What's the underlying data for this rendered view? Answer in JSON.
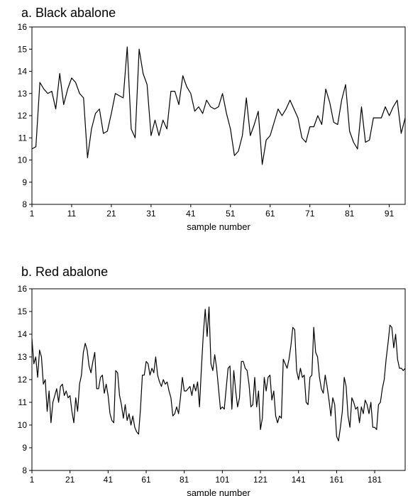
{
  "chart_data": [
    {
      "type": "line",
      "title": "a. Black abalone",
      "xlabel": "sample number",
      "ylabel": "",
      "xlim": [
        1,
        95
      ],
      "ylim": [
        8,
        16
      ],
      "yticks": [
        8,
        9,
        10,
        11,
        12,
        13,
        14,
        15,
        16
      ],
      "xticks": [
        1,
        11,
        21,
        31,
        41,
        51,
        61,
        71,
        81,
        91
      ],
      "grid": false,
      "legend": "none",
      "series": [
        {
          "values": [
            10.5,
            10.6,
            13.5,
            13.2,
            13.0,
            13.1,
            12.3,
            13.9,
            12.5,
            13.2,
            13.7,
            13.5,
            13.0,
            12.8,
            10.1,
            11.4,
            12.1,
            12.3,
            11.2,
            11.3,
            12.1,
            13.0,
            12.9,
            12.8,
            15.1,
            11.4,
            11.0,
            15.0,
            13.9,
            13.4,
            11.1,
            11.8,
            11.1,
            11.8,
            11.4,
            13.1,
            13.1,
            12.5,
            13.8,
            13.3,
            13.0,
            12.2,
            12.4,
            12.1,
            12.7,
            12.4,
            12.3,
            12.4,
            13.0,
            12.1,
            11.4,
            10.2,
            10.4,
            11.1,
            12.8,
            11.1,
            11.6,
            12.2,
            9.8,
            10.9,
            11.1,
            11.7,
            12.3,
            12.0,
            12.3,
            12.7,
            12.3,
            11.9,
            11.0,
            10.8,
            11.5,
            11.5,
            12.0,
            11.6,
            13.2,
            12.6,
            11.7,
            11.6,
            12.7,
            13.4,
            11.3,
            10.8,
            10.5,
            12.4,
            10.8,
            10.9,
            11.9,
            11.9,
            11.9,
            12.4,
            12.0,
            12.4,
            12.7,
            11.2,
            11.9
          ]
        }
      ]
    },
    {
      "type": "line",
      "title": "b. Red abalone",
      "xlabel": "sample number",
      "ylabel": "",
      "xlim": [
        1,
        197
      ],
      "ylim": [
        8,
        16
      ],
      "yticks": [
        8,
        9,
        10,
        11,
        12,
        13,
        14,
        15,
        16
      ],
      "xticks": [
        1,
        21,
        41,
        61,
        81,
        101,
        121,
        141,
        161,
        181
      ],
      "grid": false,
      "legend": "none",
      "series": [
        {
          "values": [
            13.8,
            12.7,
            13.0,
            12.1,
            13.3,
            13.0,
            11.8,
            12.0,
            10.6,
            11.5,
            10.1,
            11.0,
            11.3,
            11.6,
            11.0,
            11.7,
            11.8,
            11.3,
            11.5,
            11.2,
            11.3,
            10.6,
            10.1,
            11.2,
            10.6,
            11.8,
            12.2,
            13.2,
            13.6,
            13.3,
            12.6,
            12.3,
            12.8,
            13.2,
            11.6,
            11.6,
            12.1,
            12.2,
            11.4,
            11.8,
            11.3,
            10.5,
            10.2,
            10.1,
            12.4,
            12.3,
            11.3,
            10.9,
            10.3,
            10.9,
            10.2,
            10.5,
            10.0,
            10.4,
            9.9,
            9.7,
            9.6,
            10.7,
            12.2,
            12.2,
            12.8,
            12.7,
            12.2,
            12.5,
            12.3,
            13.0,
            12.2,
            11.9,
            11.7,
            12.0,
            11.8,
            11.9,
            11.5,
            11.2,
            10.4,
            10.5,
            10.8,
            10.5,
            11.2,
            12.1,
            11.5,
            11.5,
            11.6,
            11.7,
            11.3,
            11.8,
            11.5,
            11.9,
            10.8,
            12.5,
            14.0,
            15.1,
            13.9,
            15.2,
            12.7,
            12.4,
            13.1,
            12.5,
            11.6,
            10.7,
            10.8,
            10.7,
            11.6,
            12.5,
            12.6,
            10.7,
            12.4,
            11.5,
            10.8,
            11.2,
            12.8,
            12.8,
            12.5,
            12.4,
            11.8,
            10.8,
            10.9,
            12.1,
            10.8,
            11.5,
            9.8,
            10.3,
            12.1,
            11.5,
            12.1,
            12.2,
            11.1,
            11.5,
            10.4,
            10.1,
            10.4,
            10.3,
            12.9,
            12.7,
            12.5,
            12.9,
            13.5,
            14.3,
            14.2,
            12.4,
            12.0,
            12.5,
            12.1,
            12.2,
            11.0,
            10.9,
            12.1,
            12.2,
            14.3,
            13.2,
            13.0,
            12.1,
            11.6,
            11.4,
            12.2,
            11.7,
            11.1,
            10.4,
            11.2,
            10.9,
            9.5,
            9.3,
            9.9,
            10.6,
            12.1,
            11.7,
            10.4,
            9.9,
            11.2,
            11.0,
            10.7,
            10.8,
            10.1,
            10.8,
            10.5,
            11.1,
            10.9,
            10.5,
            11.0,
            9.9,
            9.9,
            9.8,
            10.9,
            11.0,
            11.6,
            12.0,
            12.9,
            13.6,
            14.4,
            14.3,
            13.4,
            14.0,
            12.9,
            12.5,
            12.5,
            12.4,
            12.5
          ]
        }
      ]
    }
  ]
}
